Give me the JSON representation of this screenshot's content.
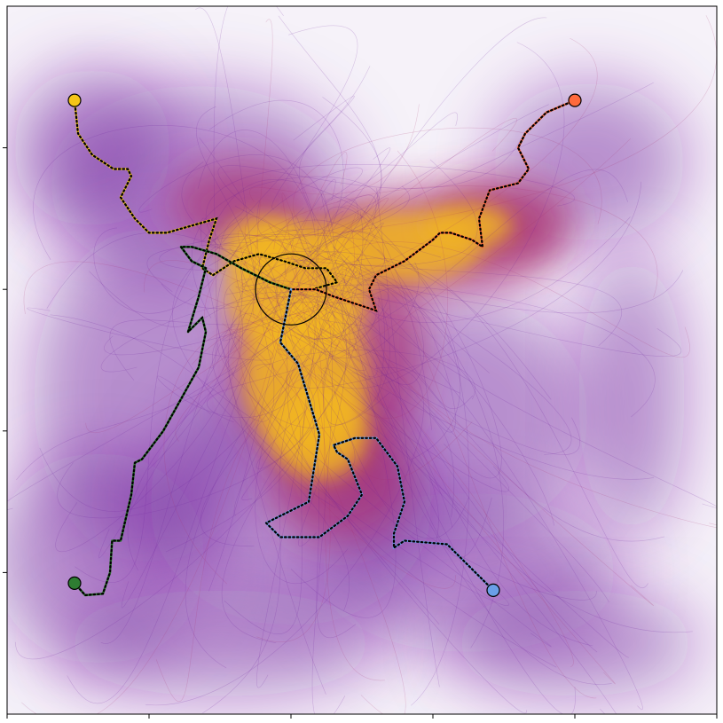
{
  "chart_data": {
    "type": "line",
    "title": "",
    "xlabel": "",
    "ylabel": "",
    "xlim": [
      0,
      1
    ],
    "ylim": [
      0,
      1
    ],
    "xticks": [
      0,
      0.2,
      0.4,
      0.6,
      0.8,
      1.0
    ],
    "yticks": [
      0.2,
      0.4,
      0.6,
      0.8
    ],
    "tick_labels_visible": false,
    "grid": false,
    "goal": {
      "x": 0.4,
      "y": 0.6,
      "radius": 0.05,
      "color": "#000000"
    },
    "density_colors": {
      "low": "#6a1b9a",
      "mid": "#a8306f",
      "high": "#f2b61c"
    },
    "series": [
      {
        "color": "#f5c518",
        "start": [
          0.095,
          0.867
        ],
        "x": [
          0.095,
          0.1,
          0.12,
          0.15,
          0.17,
          0.175,
          0.16,
          0.18,
          0.2,
          0.225,
          0.26,
          0.295,
          0.285,
          0.275,
          0.29,
          0.32,
          0.355,
          0.39,
          0.42,
          0.45,
          0.465,
          0.43,
          0.4
        ],
        "y": [
          0.867,
          0.82,
          0.79,
          0.77,
          0.77,
          0.76,
          0.73,
          0.7,
          0.68,
          0.68,
          0.69,
          0.7,
          0.67,
          0.63,
          0.62,
          0.64,
          0.65,
          0.64,
          0.63,
          0.63,
          0.61,
          0.6,
          0.6
        ]
      },
      {
        "color": "#ff6a3d",
        "start": [
          0.8,
          0.867
        ],
        "x": [
          0.8,
          0.76,
          0.73,
          0.72,
          0.735,
          0.72,
          0.68,
          0.665,
          0.67,
          0.655,
          0.625,
          0.61,
          0.6,
          0.56,
          0.52,
          0.51,
          0.52,
          0.49,
          0.46,
          0.435,
          0.4
        ],
        "y": [
          0.867,
          0.85,
          0.82,
          0.8,
          0.77,
          0.75,
          0.74,
          0.7,
          0.66,
          0.67,
          0.68,
          0.68,
          0.67,
          0.64,
          0.62,
          0.6,
          0.57,
          0.58,
          0.59,
          0.6,
          0.6
        ]
      },
      {
        "color": "#2e7d32",
        "start": [
          0.095,
          0.185
        ],
        "x": [
          0.095,
          0.11,
          0.135,
          0.145,
          0.148,
          0.16,
          0.175,
          0.18,
          0.19,
          0.22,
          0.27,
          0.28,
          0.275,
          0.255,
          0.27,
          0.28,
          0.26,
          0.245,
          0.26,
          0.295,
          0.33,
          0.37,
          0.4
        ],
        "y": [
          0.185,
          0.168,
          0.17,
          0.2,
          0.245,
          0.245,
          0.31,
          0.355,
          0.36,
          0.4,
          0.49,
          0.54,
          0.56,
          0.54,
          0.59,
          0.63,
          0.64,
          0.66,
          0.66,
          0.65,
          0.63,
          0.61,
          0.6
        ]
      },
      {
        "color": "#6a9fe8",
        "start": [
          0.685,
          0.175
        ],
        "x": [
          0.685,
          0.67,
          0.62,
          0.56,
          0.545,
          0.545,
          0.56,
          0.55,
          0.52,
          0.49,
          0.46,
          0.465,
          0.48,
          0.5,
          0.48,
          0.44,
          0.385,
          0.365,
          0.425,
          0.44,
          0.41,
          0.385,
          0.39,
          0.4
        ],
        "y": [
          0.175,
          0.19,
          0.24,
          0.245,
          0.235,
          0.255,
          0.3,
          0.35,
          0.39,
          0.39,
          0.38,
          0.37,
          0.36,
          0.31,
          0.28,
          0.25,
          0.25,
          0.27,
          0.3,
          0.395,
          0.495,
          0.525,
          0.55,
          0.6
        ]
      }
    ]
  }
}
